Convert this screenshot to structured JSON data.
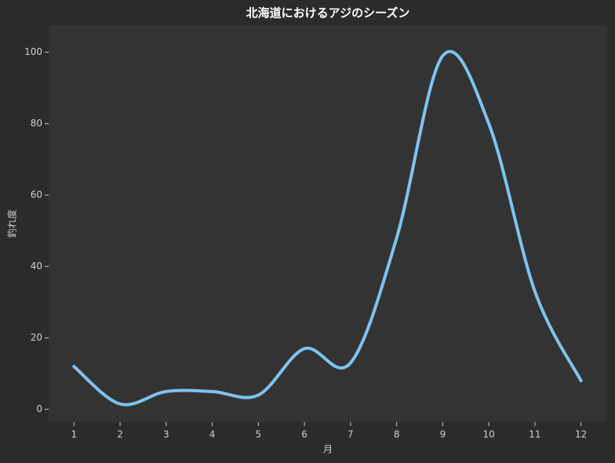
{
  "chart_data": {
    "type": "line",
    "title": "北海道におけるアジのシーズン",
    "x_label": "月",
    "y_label": "釣れ度",
    "x": [
      1,
      2,
      3,
      4,
      5,
      6,
      7,
      8,
      9,
      10,
      11,
      12
    ],
    "values": [
      12,
      1.5,
      5,
      5,
      4,
      17,
      13,
      48,
      99,
      80,
      33,
      8
    ],
    "color": "#7ec3f0",
    "xlim": [
      0.45,
      12.55
    ],
    "xticks": [
      1,
      2,
      3,
      4,
      5,
      6,
      7,
      8,
      9,
      10,
      11,
      12
    ],
    "ylim": [
      -3.6,
      107.6
    ],
    "yticks": [
      0,
      20,
      40,
      60,
      80,
      100
    ],
    "grid": false,
    "smooth": true
  }
}
